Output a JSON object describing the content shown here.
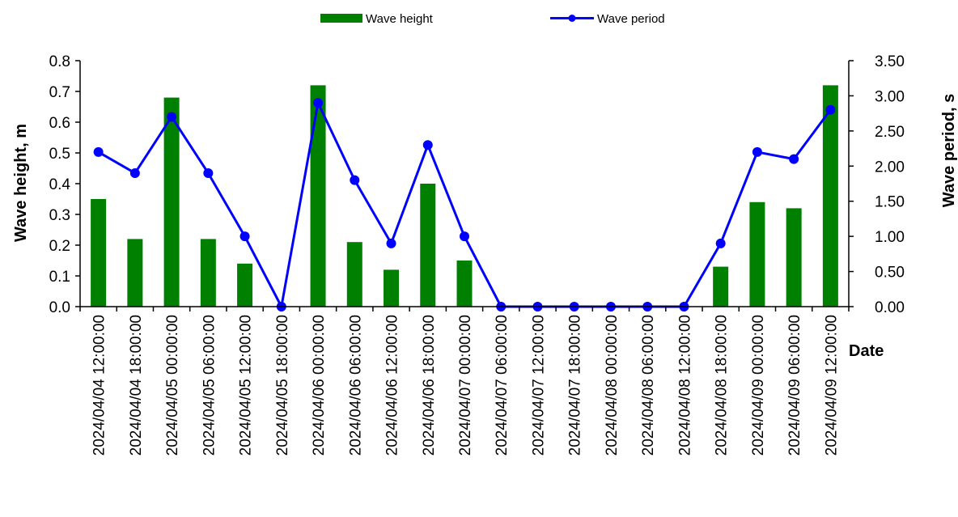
{
  "chart_data": {
    "type": "bar+line",
    "title": "",
    "xlabel": "Date",
    "categories": [
      "2024/04/04 12:00:00",
      "2024/04/04 18:00:00",
      "2024/04/05 00:00:00",
      "2024/04/05 06:00:00",
      "2024/04/05 12:00:00",
      "2024/04/05 18:00:00",
      "2024/04/06 00:00:00",
      "2024/04/06 06:00:00",
      "2024/04/06 12:00:00",
      "2024/04/06 18:00:00",
      "2024/04/07 00:00:00",
      "2024/04/07 06:00:00",
      "2024/04/07 12:00:00",
      "2024/04/07 18:00:00",
      "2024/04/08 00:00:00",
      "2024/04/08 06:00:00",
      "2024/04/08 12:00:00",
      "2024/04/08 18:00:00",
      "2024/04/09 00:00:00",
      "2024/04/09 06:00:00",
      "2024/04/09 12:00:00"
    ],
    "left_axis": {
      "label": "Wave height, m",
      "ylim": [
        0,
        0.8
      ],
      "ticks": [
        "0.0",
        "0.1",
        "0.2",
        "0.3",
        "0.4",
        "0.5",
        "0.6",
        "0.7",
        "0.8"
      ]
    },
    "right_axis": {
      "label": "Wave period, s",
      "ylim": [
        0,
        3.5
      ],
      "ticks": [
        "0.00",
        "0.50",
        "1.00",
        "1.50",
        "2.00",
        "2.50",
        "3.00",
        "3.50"
      ]
    },
    "series": [
      {
        "name": "Wave height",
        "type": "bar",
        "axis": "left",
        "color": "#008000",
        "values": [
          0.35,
          0.22,
          0.68,
          0.22,
          0.14,
          0.0,
          0.72,
          0.21,
          0.12,
          0.4,
          0.15,
          0.0,
          0.0,
          0.0,
          0.0,
          0.0,
          0.0,
          0.13,
          0.34,
          0.32,
          0.72
        ]
      },
      {
        "name": "Wave period",
        "type": "line",
        "axis": "right",
        "color": "#0000ff",
        "values": [
          2.2,
          1.9,
          2.7,
          1.9,
          1.0,
          0.0,
          2.9,
          1.8,
          0.9,
          2.3,
          1.0,
          0.0,
          0.0,
          0.0,
          0.0,
          0.0,
          0.0,
          0.9,
          2.2,
          2.1,
          2.8
        ]
      }
    ],
    "grid": false,
    "legend_position": "top-center"
  }
}
